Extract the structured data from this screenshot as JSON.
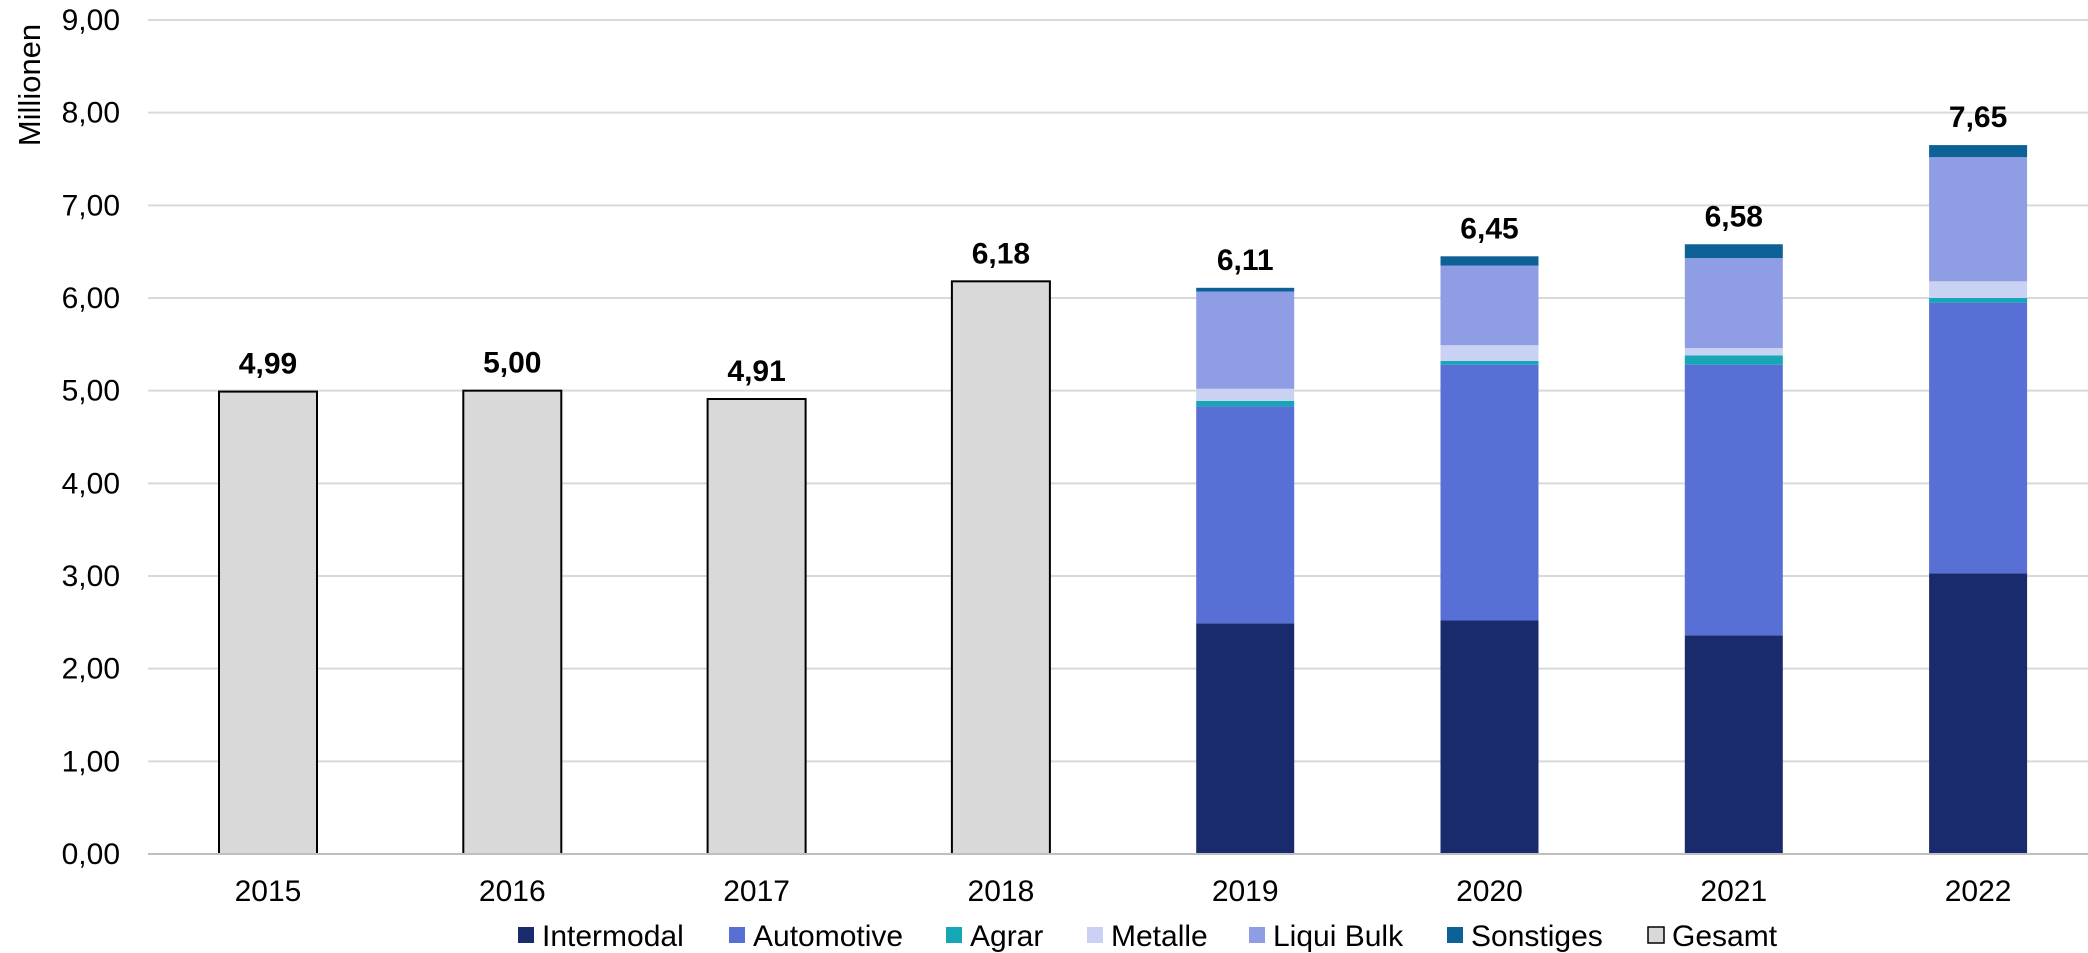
{
  "chart_data": {
    "type": "bar",
    "stacked": true,
    "categories": [
      "2015",
      "2016",
      "2017",
      "2018",
      "2019",
      "2020",
      "2021",
      "2022"
    ],
    "ylabel": "Millionen",
    "xlabel": "",
    "ylim": [
      0,
      9
    ],
    "yticks": [
      "0,00",
      "1,00",
      "2,00",
      "3,00",
      "4,00",
      "5,00",
      "6,00",
      "7,00",
      "8,00",
      "9,00"
    ],
    "grid": true,
    "legend_position": "bottom",
    "series": [
      {
        "name": "Intermodal",
        "color": "#1a2b6d",
        "values": [
          null,
          null,
          null,
          null,
          2.49,
          2.52,
          2.36,
          3.03
        ]
      },
      {
        "name": "Automotive",
        "color": "#586fd6",
        "values": [
          null,
          null,
          null,
          null,
          2.34,
          2.76,
          2.92,
          2.92
        ]
      },
      {
        "name": "Agrar",
        "color": "#16a6b6",
        "values": [
          null,
          null,
          null,
          null,
          0.06,
          0.04,
          0.1,
          0.05
        ]
      },
      {
        "name": "Metalle",
        "color": "#c9d2f3",
        "values": [
          null,
          null,
          null,
          null,
          0.13,
          0.17,
          0.08,
          0.18
        ]
      },
      {
        "name": "Liqui Bulk",
        "color": "#8f9ee4",
        "values": [
          null,
          null,
          null,
          null,
          1.05,
          0.86,
          0.97,
          1.34
        ]
      },
      {
        "name": "Sonstiges",
        "color": "#0d6197",
        "values": [
          null,
          null,
          null,
          null,
          0.04,
          0.1,
          0.15,
          0.13
        ]
      },
      {
        "name": "Gesamt",
        "color": "#d9d9d9",
        "values": [
          4.99,
          5.0,
          4.91,
          6.18,
          null,
          null,
          null,
          null
        ]
      }
    ],
    "totals": [
      4.99,
      5.0,
      4.91,
      6.18,
      6.11,
      6.45,
      6.58,
      7.65
    ],
    "total_labels": [
      "4,99",
      "5,00",
      "4,91",
      "6,18",
      "6,11",
      "6,45",
      "6,58",
      "7,65"
    ]
  }
}
